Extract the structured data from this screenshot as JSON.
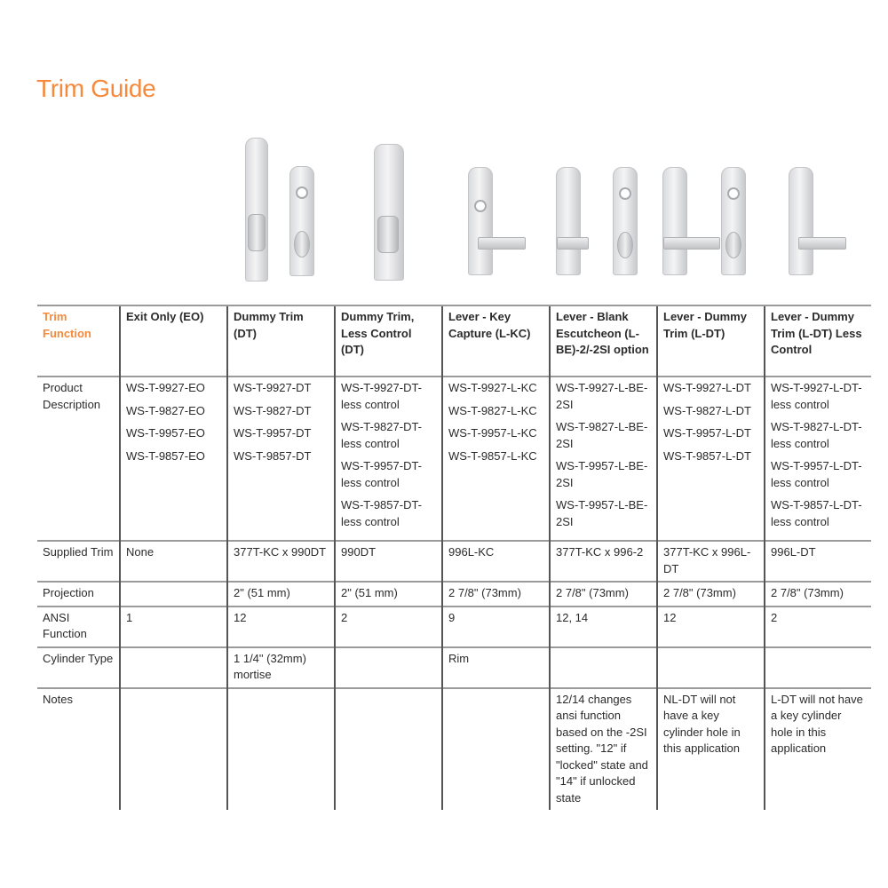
{
  "title": "Trim Guide",
  "colors": {
    "accent": "#f58a3c"
  },
  "header": [
    "Trim Function",
    "Exit Only (EO)",
    "Dummy Trim (DT)",
    "Dummy Trim, Less Control (DT)",
    "Lever - Key Capture (L-KC)",
    "Lever - Blank Escutcheon (L-BE)-2/-2SI option",
    "Lever - Dummy Trim (L-DT)",
    "Lever - Dummy Trim (L-DT) Less Control"
  ],
  "rows": [
    {
      "label": "Product Description",
      "cells": [
        [
          "WS-T-9927-EO",
          "WS-T-9827-EO",
          "WS-T-9957-EO",
          "WS-T-9857-EO"
        ],
        [
          "WS-T-9927-DT",
          "WS-T-9827-DT",
          "WS-T-9957-DT",
          "WS-T-9857-DT"
        ],
        [
          "WS-T-9927-DT-less control",
          "WS-T-9827-DT-less control",
          "WS-T-9957-DT-less control",
          "WS-T-9857-DT-less control"
        ],
        [
          "WS-T-9927-L-KC",
          "WS-T-9827-L-KC",
          "WS-T-9957-L-KC",
          "WS-T-9857-L-KC"
        ],
        [
          "WS-T-9927-L-BE-2SI",
          "WS-T-9827-L-BE-2SI",
          "WS-T-9957-L-BE-2SI",
          "WS-T-9957-L-BE-2SI"
        ],
        [
          "WS-T-9927-L-DT",
          "WS-T-9827-L-DT",
          "WS-T-9957-L-DT",
          "WS-T-9857-L-DT"
        ],
        [
          "WS-T-9927-L-DT-less control",
          "WS-T-9827-L-DT-less control",
          "WS-T-9957-L-DT-less control",
          "WS-T-9857-L-DT-less control"
        ]
      ]
    },
    {
      "label": "Supplied Trim",
      "cells": [
        "None",
        "377T-KC x 990DT",
        "990DT",
        "996L-KC",
        "377T-KC x 996-2",
        "377T-KC x 996L-DT",
        "996L-DT"
      ]
    },
    {
      "label": "Projection",
      "cells": [
        "",
        "2\" (51 mm)",
        "2\" (51 mm)",
        "2 7/8\" (73mm)",
        "2 7/8\" (73mm)",
        "2 7/8\" (73mm)",
        "2 7/8\" (73mm)"
      ]
    },
    {
      "label": "ANSI Function",
      "cells": [
        "1",
        "12",
        "2",
        "9",
        "12, 14",
        "12",
        "2"
      ]
    },
    {
      "label": "Cylinder Type",
      "cells": [
        "",
        "1 1/4\" (32mm) mortise",
        "",
        "Rim",
        "",
        "",
        ""
      ]
    },
    {
      "label": "Notes",
      "cells": [
        "",
        "",
        "",
        "",
        "12/14 changes ansi function based on the -2SI setting. \"12\" if \"locked\" state and \"14\" if unlocked state",
        "NL-DT will not have a key cylinder hole in this application",
        "L-DT will not have a key cylinder hole in this application"
      ]
    }
  ]
}
